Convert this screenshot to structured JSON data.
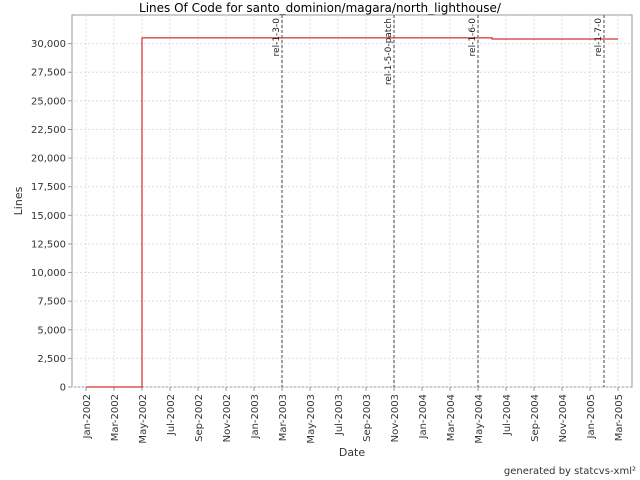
{
  "chart_data": {
    "type": "line",
    "title": "Lines Of Code for santo_dominion/magara/north_lighthouse/",
    "x_label": "Date",
    "y_label": "Lines",
    "footer": "generated by statcvs-xml²",
    "xlim": [
      "2001-12",
      "2005-04"
    ],
    "ylim": [
      0,
      32500
    ],
    "grid": true,
    "xticks": [
      {
        "value": "2002-01",
        "label": "Jan-2002"
      },
      {
        "value": "2002-03",
        "label": "Mar-2002"
      },
      {
        "value": "2002-05",
        "label": "May-2002"
      },
      {
        "value": "2002-07",
        "label": "Jul-2002"
      },
      {
        "value": "2002-09",
        "label": "Sep-2002"
      },
      {
        "value": "2002-11",
        "label": "Nov-2002"
      },
      {
        "value": "2003-01",
        "label": "Jan-2003"
      },
      {
        "value": "2003-03",
        "label": "Mar-2003"
      },
      {
        "value": "2003-05",
        "label": "May-2003"
      },
      {
        "value": "2003-07",
        "label": "Jul-2003"
      },
      {
        "value": "2003-09",
        "label": "Sep-2003"
      },
      {
        "value": "2003-11",
        "label": "Nov-2003"
      },
      {
        "value": "2004-01",
        "label": "Jan-2004"
      },
      {
        "value": "2004-03",
        "label": "Mar-2004"
      },
      {
        "value": "2004-05",
        "label": "May-2004"
      },
      {
        "value": "2004-07",
        "label": "Jul-2004"
      },
      {
        "value": "2004-09",
        "label": "Sep-2004"
      },
      {
        "value": "2004-11",
        "label": "Nov-2004"
      },
      {
        "value": "2005-01",
        "label": "Jan-2005"
      },
      {
        "value": "2005-03",
        "label": "Mar-2005"
      }
    ],
    "yticks": [
      0,
      {
        "value": 2500,
        "label": "2,500"
      },
      {
        "value": 5000,
        "label": "5,000"
      },
      {
        "value": 7500,
        "label": "7,500"
      },
      {
        "value": 10000,
        "label": "10,000"
      },
      {
        "value": 12500,
        "label": "12,500"
      },
      {
        "value": 15000,
        "label": "15,000"
      },
      {
        "value": 17500,
        "label": "17,500"
      },
      {
        "value": 20000,
        "label": "20,000"
      },
      {
        "value": 22500,
        "label": "22,500"
      },
      {
        "value": 25000,
        "label": "25,000"
      },
      {
        "value": 27500,
        "label": "27,500"
      },
      {
        "value": 30000,
        "label": "30,000"
      }
    ],
    "x": [
      "2002-01",
      "2002-05",
      "2002-05",
      "2004-06",
      "2004-06",
      "2005-03"
    ],
    "series": [
      {
        "name": "Lines",
        "color": "#cc0000",
        "values": [
          0,
          0,
          30500,
          30500,
          30400,
          30400
        ]
      }
    ],
    "annotations": [
      {
        "label": "rel-1-3-0",
        "x": "2003-03"
      },
      {
        "label": "rel-1-5-0-patch",
        "x": "2003-11"
      },
      {
        "label": "rel-1-6-0",
        "x": "2004-05"
      },
      {
        "label": "rel-1-7-0",
        "x": "2005-02"
      }
    ]
  }
}
